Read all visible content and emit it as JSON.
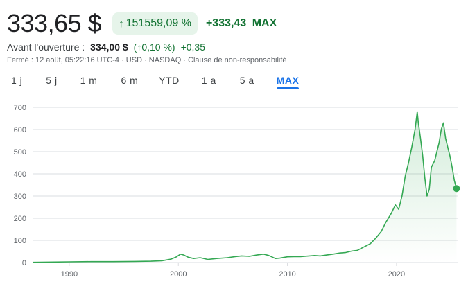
{
  "header": {
    "price": "333,65 $",
    "badge_arrow": "↑",
    "badge_pct": "151559,09 %",
    "change_abs": "+333,43",
    "change_period": "MAX"
  },
  "premarket": {
    "label": "Avant l'ouverture :",
    "value": "334,00 $",
    "pct": "(↑0,10 %)",
    "abs": "+0,35"
  },
  "info": "Fermé : 12 août, 05:22:16 UTC-4 · USD · NASDAQ · Clause de non-responsabilité",
  "tabs": [
    {
      "label": "1 j",
      "active": false
    },
    {
      "label": "5 j",
      "active": false
    },
    {
      "label": "1 m",
      "active": false
    },
    {
      "label": "6 m",
      "active": false
    },
    {
      "label": "YTD",
      "active": false
    },
    {
      "label": "1 a",
      "active": false
    },
    {
      "label": "5 a",
      "active": false
    },
    {
      "label": "MAX",
      "active": true
    }
  ],
  "colors": {
    "line": "#34a853",
    "fill_top": "#34a853",
    "accent": "#1a73e8",
    "positive": "#137333"
  },
  "chart_data": {
    "type": "area",
    "ylim": [
      0,
      700
    ],
    "yticks": [
      0,
      100,
      200,
      300,
      400,
      500,
      600,
      700
    ],
    "xlim": [
      1986.7,
      2025.6
    ],
    "xticks": [
      1990,
      2000,
      2010,
      2020
    ],
    "grid": true,
    "series": [
      {
        "x": [
          1986.7,
          1988,
          1990,
          1992,
          1994,
          1996,
          1997.5,
          1998.5,
          1999.3,
          1999.8,
          2000.2,
          2000.5,
          2000.9,
          2001.4,
          2002.0,
          2002.7,
          2003.5,
          2004.5,
          2005.2,
          2005.8,
          2006.5,
          2007.2,
          2007.8,
          2008.3,
          2008.9,
          2009.3,
          2010.0,
          2010.6,
          2011.2,
          2011.8,
          2012.5,
          2013.0,
          2013.6,
          2014.2,
          2014.8,
          2015.3,
          2015.9,
          2016.4,
          2017.0,
          2017.6,
          2018.1,
          2018.6,
          2019.0,
          2019.5,
          2019.9,
          2020.2,
          2020.5,
          2020.8,
          2021.1,
          2021.4,
          2021.7,
          2021.9,
          2022.0,
          2022.2,
          2022.4,
          2022.6,
          2022.8,
          2023.0,
          2023.2,
          2023.5,
          2023.7,
          2023.9,
          2024.1,
          2024.3,
          2024.5,
          2024.7,
          2024.9,
          2025.1,
          2025.3,
          2025.5
        ],
        "y": [
          1,
          2,
          3,
          4,
          4,
          5,
          6,
          8,
          15,
          25,
          38,
          34,
          24,
          18,
          22,
          14,
          18,
          22,
          27,
          30,
          28,
          34,
          38,
          32,
          18,
          20,
          26,
          27,
          27,
          29,
          32,
          30,
          34,
          38,
          43,
          45,
          52,
          55,
          70,
          85,
          110,
          140,
          180,
          220,
          260,
          240,
          300,
          390,
          450,
          520,
          600,
          680,
          630,
          560,
          480,
          380,
          300,
          330,
          430,
          460,
          500,
          540,
          600,
          630,
          560,
          520,
          480,
          430,
          370,
          333.65
        ]
      }
    ]
  }
}
